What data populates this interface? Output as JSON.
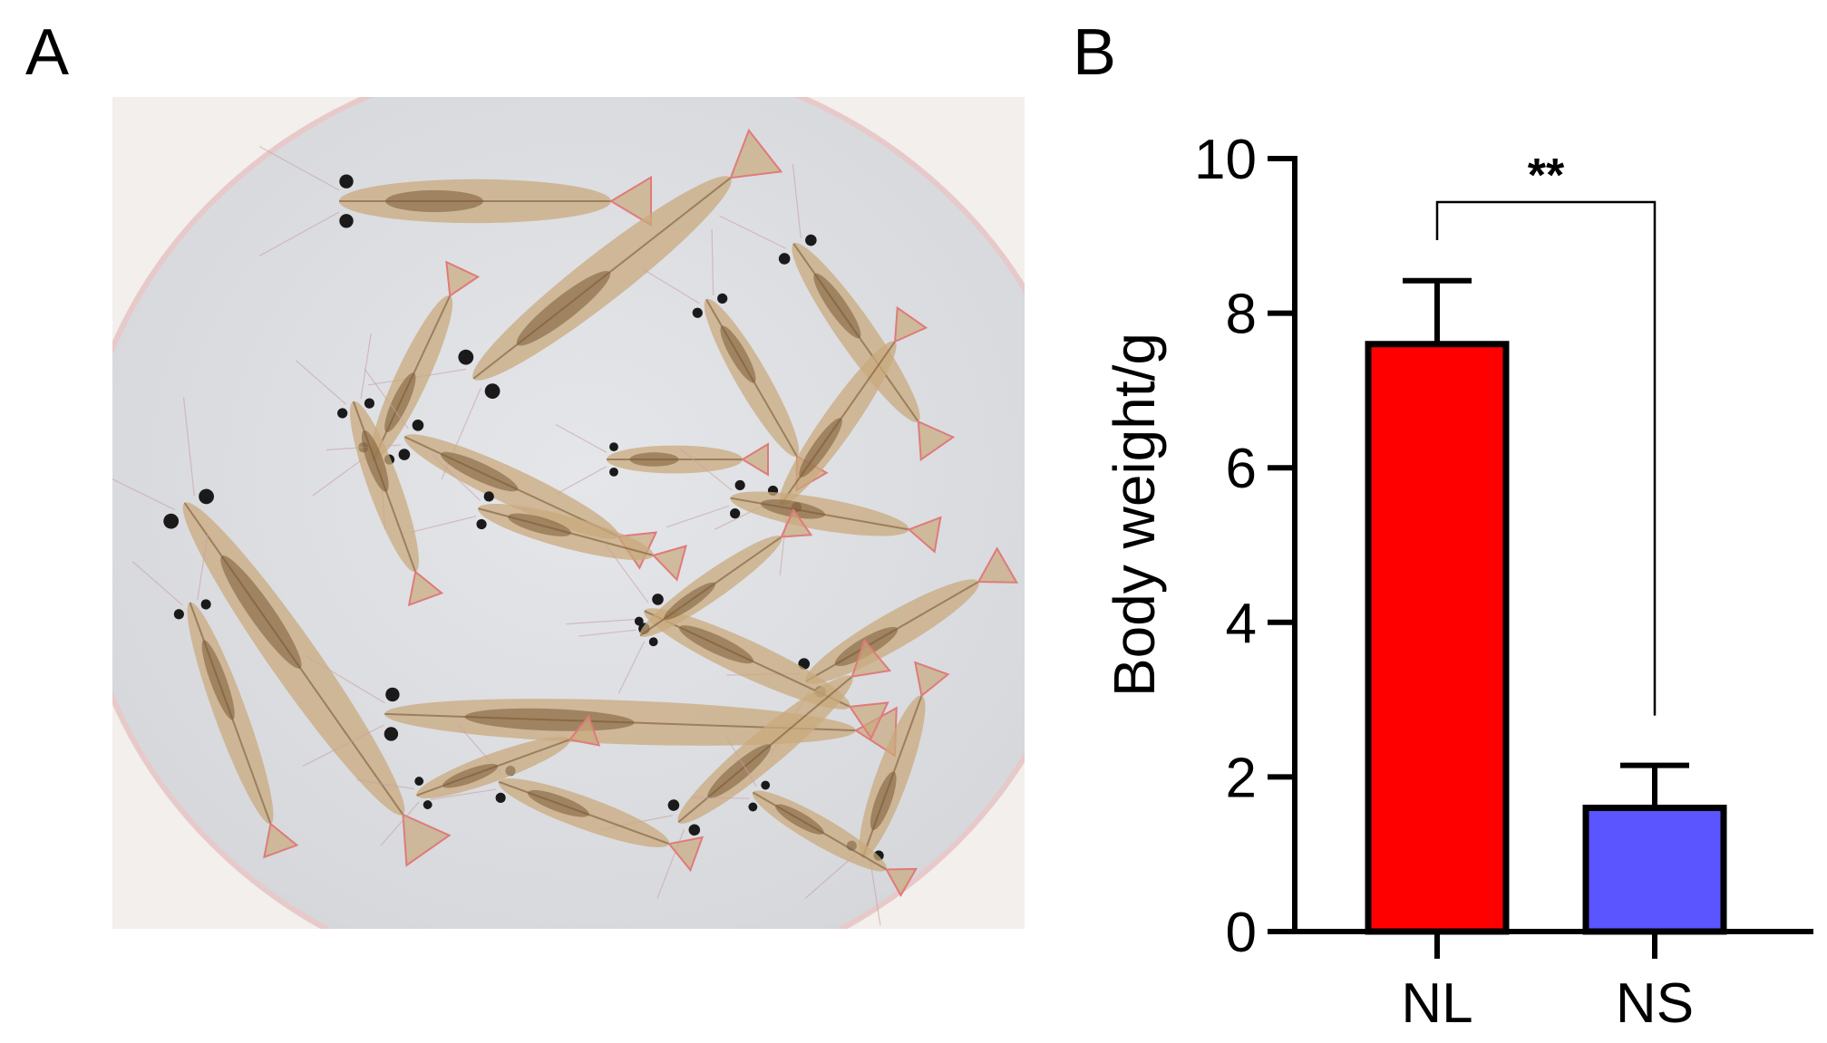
{
  "panels": {
    "a_label": "A",
    "b_label": "B"
  },
  "photo": {
    "background_color": "#d7d9dc",
    "shrimp_color": "#c9a97d",
    "shrimp_dark": "#7a5a35",
    "eye_color": "#1a1a1a",
    "tail_color": "#e07a7a"
  },
  "chart_data": {
    "type": "bar",
    "categories": [
      "NL",
      "NS"
    ],
    "values": [
      7.6,
      1.6
    ],
    "errors": [
      0.82,
      0.55
    ],
    "colors": [
      "#ff0000",
      "#5a55ff"
    ],
    "ylabel": "Body weight/g",
    "ylim": [
      0,
      10
    ],
    "yticks": [
      0,
      2,
      4,
      6,
      8,
      10
    ],
    "significance": {
      "label": "**",
      "from": "NL",
      "to": "NS"
    },
    "grid": false,
    "legend": "none"
  }
}
